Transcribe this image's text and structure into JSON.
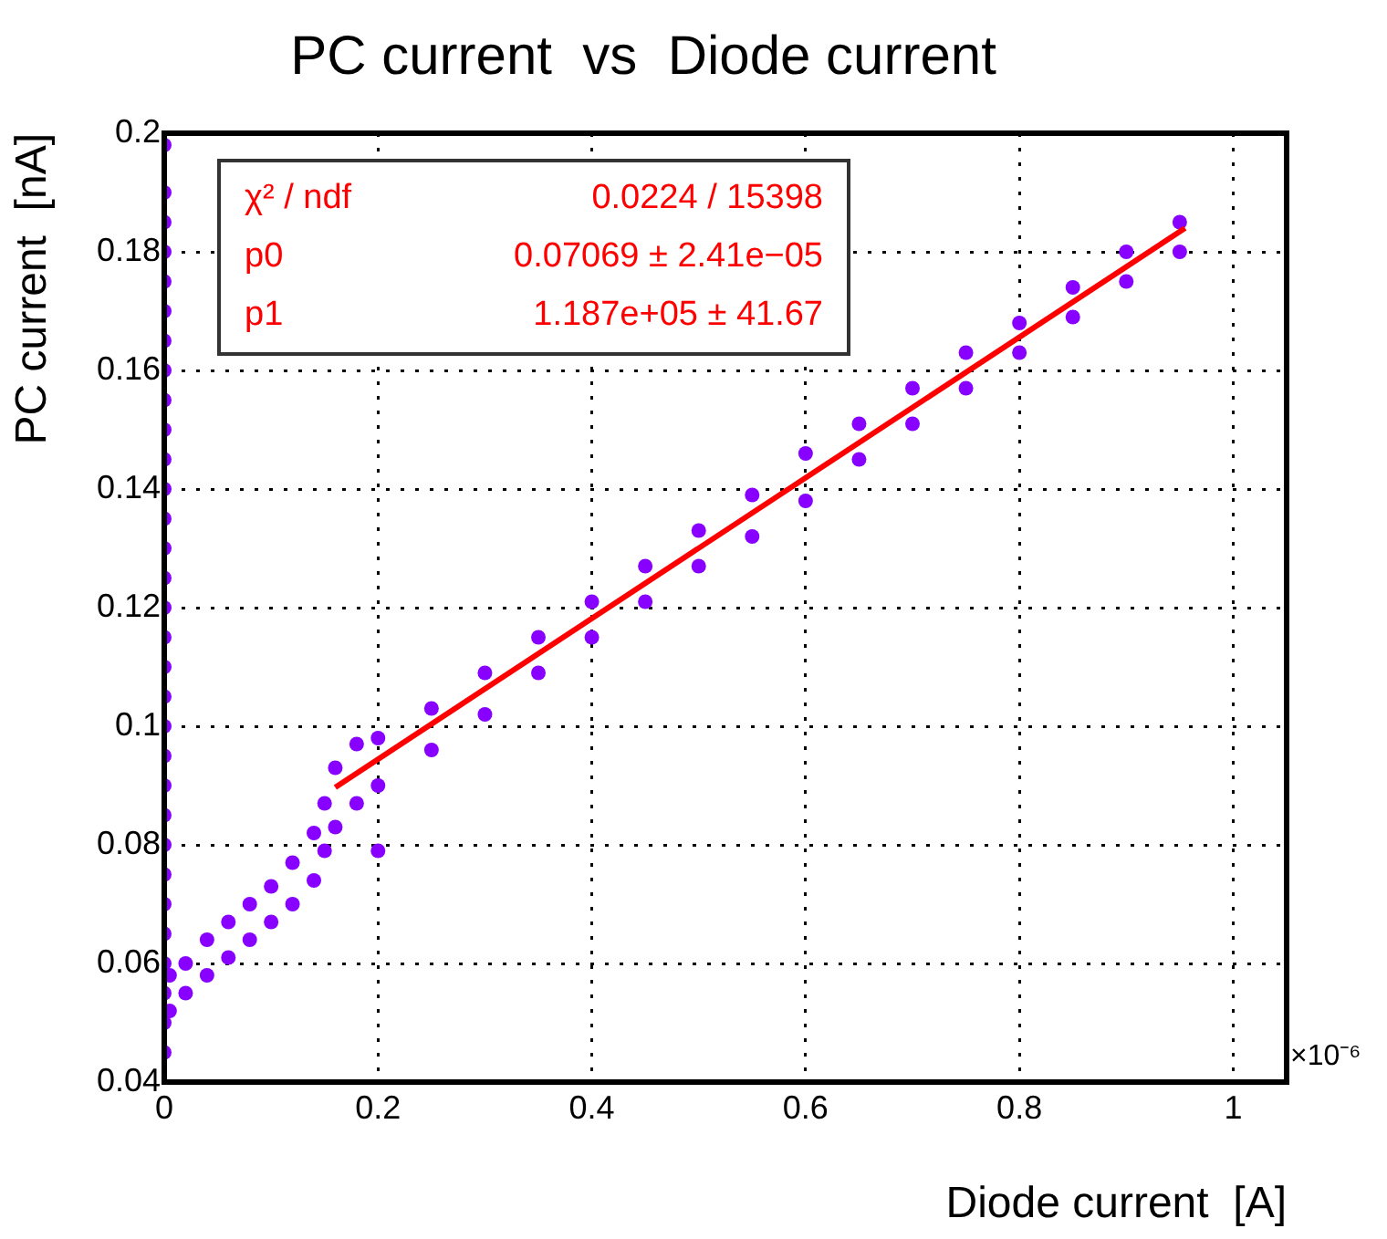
{
  "chart_data": {
    "type": "scatter",
    "title": "PC current  vs  Diode current",
    "xlabel": "Diode current  [A]",
    "ylabel": "PC current  [nA]",
    "xlim": [
      0,
      1.05
    ],
    "xticks": [
      0,
      0.2,
      0.4,
      0.6,
      0.8,
      1
    ],
    "ylim": [
      0.04,
      0.2
    ],
    "yticks": [
      0.04,
      0.06,
      0.08,
      0.1,
      0.12,
      0.14,
      0.16,
      0.18,
      0.2
    ],
    "grid": true,
    "legend": false,
    "annotations": [
      "χ² / ndf",
      "0.0224 / 15398",
      "p0",
      "0.07069 ± 2.41e−05",
      "p1",
      "1.187e+05 ± 41.67",
      "×10⁻⁶"
    ],
    "series": [
      {
        "marker": "circle",
        "color": "#8800ff",
        "x": [
          0,
          0,
          0,
          0,
          0,
          0,
          0,
          0,
          0,
          0,
          0,
          0,
          0,
          0,
          0,
          0,
          0,
          0,
          0,
          0,
          0,
          0,
          0,
          0,
          0,
          0,
          0,
          0,
          0,
          0,
          0,
          0.005,
          0.005,
          0.02,
          0.02,
          0.04,
          0.04,
          0.06,
          0.06,
          0.08,
          0.08,
          0.1,
          0.1,
          0.12,
          0.12,
          0.14,
          0.14,
          0.15,
          0.15,
          0.16,
          0.16,
          0.18,
          0.18,
          0.2,
          0.2,
          0.2,
          0.25,
          0.25,
          0.3,
          0.3,
          0.35,
          0.35,
          0.4,
          0.4,
          0.45,
          0.45,
          0.5,
          0.5,
          0.55,
          0.55,
          0.6,
          0.6,
          0.65,
          0.65,
          0.7,
          0.7,
          0.75,
          0.75,
          0.8,
          0.8,
          0.85,
          0.85,
          0.9,
          0.9,
          0.95,
          0.95
        ],
        "values": [
          0.045,
          0.05,
          0.055,
          0.06,
          0.065,
          0.07,
          0.075,
          0.08,
          0.085,
          0.09,
          0.095,
          0.1,
          0.105,
          0.11,
          0.115,
          0.12,
          0.125,
          0.13,
          0.135,
          0.14,
          0.145,
          0.15,
          0.155,
          0.16,
          0.165,
          0.17,
          0.175,
          0.18,
          0.185,
          0.19,
          0.198,
          0.052,
          0.058,
          0.055,
          0.06,
          0.058,
          0.064,
          0.061,
          0.067,
          0.064,
          0.07,
          0.067,
          0.073,
          0.07,
          0.077,
          0.074,
          0.082,
          0.079,
          0.087,
          0.083,
          0.093,
          0.087,
          0.097,
          0.09,
          0.098,
          0.079,
          0.096,
          0.103,
          0.102,
          0.109,
          0.109,
          0.115,
          0.115,
          0.121,
          0.121,
          0.127,
          0.127,
          0.133,
          0.132,
          0.139,
          0.138,
          0.146,
          0.145,
          0.151,
          0.151,
          0.157,
          0.157,
          0.163,
          0.163,
          0.168,
          0.169,
          0.174,
          0.175,
          0.18,
          0.18,
          0.185
        ]
      },
      {
        "type": "line",
        "marker": "none",
        "color": "#ff0000",
        "x": [
          0.16,
          0.955
        ],
        "values": [
          0.0897,
          0.184
        ]
      }
    ]
  }
}
